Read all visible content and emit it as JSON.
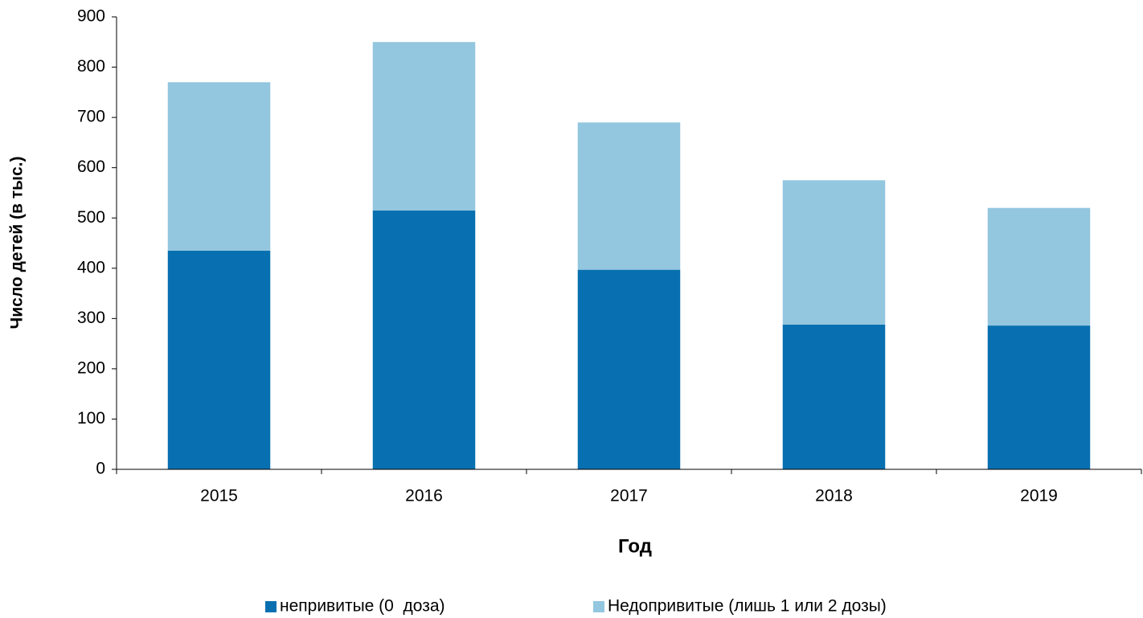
{
  "chart_data": {
    "type": "stacked_bar",
    "xlabel": "Год",
    "ylabel": "Число детей (в тыс.)",
    "categories": [
      "2015",
      "2016",
      "2017",
      "2018",
      "2019"
    ],
    "series": [
      {
        "name": "непривитые (0  доза)",
        "color": "#0870b0",
        "values": [
          435,
          515,
          397,
          288,
          286
        ]
      },
      {
        "name": "Недопривитые (лишь 1 или 2 дозы)",
        "color": "#93c6df",
        "values": [
          335,
          335,
          293,
          287,
          234
        ]
      }
    ],
    "ylim": [
      0,
      900
    ],
    "yticks": [
      0,
      100,
      200,
      300,
      400,
      500,
      600,
      700,
      800,
      900
    ],
    "legend": "bottom"
  }
}
